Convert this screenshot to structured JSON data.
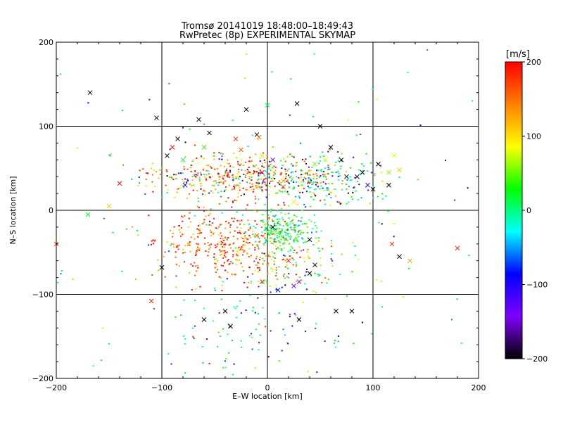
{
  "chart_data": {
    "type": "scatter",
    "title": "Tromsø 20141019 18:48:00–18:49:43",
    "subtitle": "RwPretec (8p) EXPERIMENTAL SKYMAP",
    "xlabel": "E–W location [km]",
    "ylabel": "N–S location [km]",
    "xlim": [
      -200,
      200
    ],
    "ylim": [
      -200,
      200
    ],
    "xticks": [
      "−200",
      "−100",
      "0",
      "100",
      "200"
    ],
    "yticks": [
      "−200",
      "−100",
      "0",
      "100",
      "200"
    ],
    "grid_lines_x": [
      -100,
      0,
      100
    ],
    "grid_lines_y": [
      -100,
      0,
      100
    ],
    "colorbar": {
      "label": "[m/s]",
      "range": [
        -200,
        200
      ],
      "ticks": [
        "200",
        "100",
        "0",
        "−100",
        "−200"
      ],
      "colormap": [
        "#000000",
        "#7f00ff",
        "#0000ff",
        "#00ffff",
        "#00ff00",
        "#ffff00",
        "#ff8000",
        "#ff0000"
      ]
    },
    "markers": {
      "large": "×",
      "small": "dot"
    },
    "series": [
      {
        "marker": "×",
        "points": [
          [
            -168,
            140,
            -200
          ],
          [
            -200,
            -40,
            180
          ],
          [
            -170,
            -5,
            20
          ],
          [
            -150,
            5,
            110
          ],
          [
            -140,
            32,
            190
          ],
          [
            -110,
            -108,
            190
          ],
          [
            -100,
            -68,
            -200
          ],
          [
            -95,
            65,
            -200
          ],
          [
            -90,
            75,
            190
          ],
          [
            -85,
            85,
            -200
          ],
          [
            -80,
            60,
            0
          ],
          [
            -78,
            30,
            -100
          ],
          [
            -65,
            108,
            -200
          ],
          [
            -60,
            75,
            40
          ],
          [
            -55,
            92,
            -200
          ],
          [
            -60,
            -130,
            -200
          ],
          [
            -40,
            -120,
            -200
          ],
          [
            -35,
            -138,
            -200
          ],
          [
            -30,
            85,
            180
          ],
          [
            -25,
            72,
            160
          ],
          [
            -20,
            120,
            -200
          ],
          [
            -10,
            90,
            -200
          ],
          [
            -8,
            87,
            150
          ],
          [
            -5,
            65,
            100
          ],
          [
            -5,
            45,
            190
          ],
          [
            0,
            125,
            10
          ],
          [
            5,
            60,
            -150
          ],
          [
            15,
            28,
            160
          ],
          [
            15,
            35,
            120
          ],
          [
            25,
            10,
            80
          ],
          [
            28,
            127,
            -200
          ],
          [
            20,
            -60,
            190
          ],
          [
            25,
            -90,
            -150
          ],
          [
            30,
            -85,
            -150
          ],
          [
            30,
            -130,
            -200
          ],
          [
            40,
            -75,
            -200
          ],
          [
            45,
            -65,
            -200
          ],
          [
            50,
            100,
            -200
          ],
          [
            45,
            55,
            60
          ],
          [
            55,
            60,
            90
          ],
          [
            60,
            75,
            -200
          ],
          [
            65,
            -120,
            -200
          ],
          [
            70,
            60,
            -200
          ],
          [
            80,
            -120,
            -200
          ],
          [
            75,
            40,
            -200
          ],
          [
            90,
            45,
            -200
          ],
          [
            95,
            30,
            -120
          ],
          [
            100,
            25,
            -200
          ],
          [
            105,
            55,
            -200
          ],
          [
            115,
            30,
            -200
          ],
          [
            115,
            45,
            60
          ],
          [
            125,
            48,
            110
          ],
          [
            120,
            65,
            90
          ],
          [
            118,
            -40,
            180
          ],
          [
            125,
            -55,
            -200
          ],
          [
            135,
            -60,
            130
          ],
          [
            180,
            -45,
            180
          ],
          [
            5,
            -20,
            -200
          ],
          [
            -10,
            -30,
            150
          ],
          [
            40,
            -35,
            -200
          ],
          [
            -5,
            -85,
            190
          ],
          [
            10,
            -95,
            -80
          ],
          [
            85,
            40,
            -200
          ],
          [
            -105,
            110,
            -200
          ]
        ]
      },
      {
        "marker": "dot",
        "description": "dense cloud of velocity samples drawn from the clusters below",
        "clusters": [
          {
            "cx": -30,
            "cy": 40,
            "sx": 40,
            "sy": 14,
            "n": 420,
            "vmin": -200,
            "vmax": 200,
            "bias": 150
          },
          {
            "cx": 50,
            "cy": 35,
            "sx": 28,
            "sy": 15,
            "n": 230,
            "vmin": -200,
            "vmax": 200,
            "bias": 0
          },
          {
            "cx": -35,
            "cy": -40,
            "sx": 35,
            "sy": 22,
            "n": 380,
            "vmin": 100,
            "vmax": 200,
            "bias": 170
          },
          {
            "cx": 15,
            "cy": -25,
            "sx": 14,
            "sy": 11,
            "n": 220,
            "vmin": -60,
            "vmax": 60,
            "bias": 20
          },
          {
            "cx": 20,
            "cy": -65,
            "sx": 28,
            "sy": 20,
            "n": 110,
            "vmin": -200,
            "vmax": 200,
            "bias": 60
          },
          {
            "cx": -20,
            "cy": -140,
            "sx": 40,
            "sy": 30,
            "n": 90,
            "vmin": -200,
            "vmax": 200,
            "bias": -20
          },
          {
            "cx": 0,
            "cy": 0,
            "sx": 140,
            "sy": 120,
            "n": 160,
            "vmin": -200,
            "vmax": 200,
            "bias": 0
          }
        ]
      }
    ]
  }
}
